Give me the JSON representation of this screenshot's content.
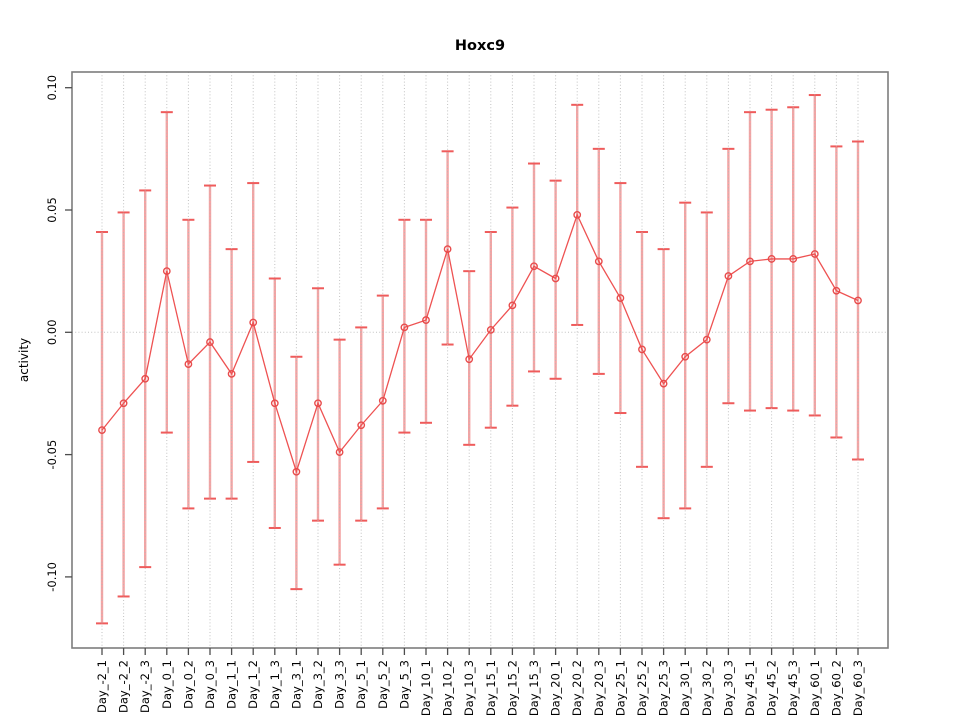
{
  "figure": {
    "title": "Hoxc9",
    "ylabel": "activity"
  },
  "chart_data": {
    "type": "line",
    "title": "Hoxc9",
    "xlabel": "",
    "ylabel": "activity",
    "legend_position": "none",
    "point_style": "open-circle",
    "error_bars": true,
    "grid": {
      "vertical_dotted_per_category": true,
      "horizontal_zero_line_dotted": true
    },
    "ylim": [
      -0.129,
      0.106
    ],
    "ytick_labels": [
      "-0.10",
      "-0.05",
      "0.00",
      "0.05",
      "0.10"
    ],
    "categories": [
      "Day_-2_1",
      "Day_-2_2",
      "Day_-2_3",
      "Day_0_1",
      "Day_0_2",
      "Day_0_3",
      "Day_1_1",
      "Day_1_2",
      "Day_1_3",
      "Day_3_1",
      "Day_3_2",
      "Day_3_3",
      "Day_5_1",
      "Day_5_2",
      "Day_5_3",
      "Day_10_1",
      "Day_10_2",
      "Day_10_3",
      "Day_15_1",
      "Day_15_2",
      "Day_15_3",
      "Day_20_1",
      "Day_20_2",
      "Day_20_3",
      "Day_25_1",
      "Day_25_2",
      "Day_25_3",
      "Day_30_1",
      "Day_30_2",
      "Day_30_3",
      "Day_45_1",
      "Day_45_2",
      "Day_45_3",
      "Day_60_1",
      "Day_60_2",
      "Day_60_3"
    ],
    "series": [
      {
        "name": "activity",
        "values": [
          -0.04,
          -0.029,
          -0.019,
          0.025,
          -0.013,
          -0.004,
          -0.017,
          0.004,
          -0.029,
          -0.057,
          -0.029,
          -0.049,
          -0.038,
          -0.028,
          0.002,
          0.005,
          0.034,
          -0.011,
          0.001,
          0.011,
          0.027,
          0.022,
          0.048,
          0.029,
          0.014,
          -0.007,
          -0.021,
          -0.01,
          -0.003,
          0.023,
          0.029,
          0.03,
          0.03,
          0.032,
          0.017,
          0.013
        ],
        "error_low": [
          -0.119,
          -0.108,
          -0.096,
          -0.041,
          -0.072,
          -0.068,
          -0.068,
          -0.053,
          -0.08,
          -0.105,
          -0.077,
          -0.095,
          -0.077,
          -0.072,
          -0.041,
          -0.037,
          -0.005,
          -0.046,
          -0.039,
          -0.03,
          -0.016,
          -0.019,
          0.003,
          -0.017,
          -0.033,
          -0.055,
          -0.076,
          -0.072,
          -0.055,
          -0.029,
          -0.032,
          -0.031,
          -0.032,
          -0.034,
          -0.043,
          -0.052
        ],
        "error_high": [
          0.041,
          0.049,
          0.058,
          0.09,
          0.046,
          0.06,
          0.034,
          0.061,
          0.022,
          -0.01,
          0.018,
          -0.003,
          0.002,
          0.015,
          0.046,
          0.046,
          0.074,
          0.025,
          0.041,
          0.051,
          0.069,
          0.062,
          0.093,
          0.075,
          0.061,
          0.041,
          0.034,
          0.053,
          0.049,
          0.075,
          0.09,
          0.091,
          0.092,
          0.097,
          0.076,
          0.078
        ]
      }
    ],
    "colors": {
      "point_stroke": "#e84b4b",
      "line": "#ee5252",
      "error_bar_vertical": "#f5a3a3",
      "error_bar_cap": "#ef5b5b",
      "grid_dots": "#b8b8b8",
      "axis_box": "#7d7d7d",
      "tick": "#4d4d4d",
      "text": "#000000"
    }
  }
}
